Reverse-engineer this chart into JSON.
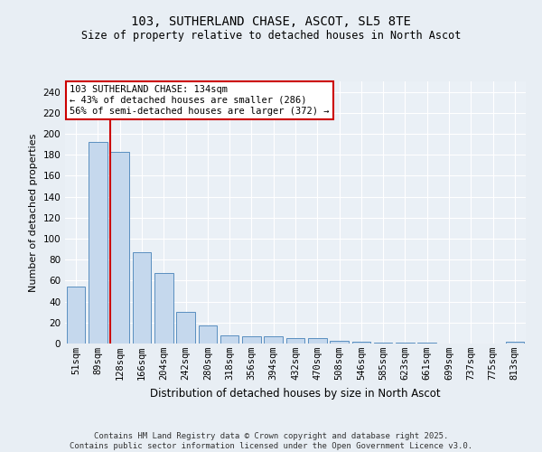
{
  "title_line1": "103, SUTHERLAND CHASE, ASCOT, SL5 8TE",
  "title_line2": "Size of property relative to detached houses in North Ascot",
  "xlabel": "Distribution of detached houses by size in North Ascot",
  "ylabel": "Number of detached properties",
  "categories": [
    "51sqm",
    "89sqm",
    "128sqm",
    "166sqm",
    "204sqm",
    "242sqm",
    "280sqm",
    "318sqm",
    "356sqm",
    "394sqm",
    "432sqm",
    "470sqm",
    "508sqm",
    "546sqm",
    "585sqm",
    "623sqm",
    "661sqm",
    "699sqm",
    "737sqm",
    "775sqm",
    "813sqm"
  ],
  "values": [
    54,
    192,
    183,
    87,
    67,
    30,
    17,
    8,
    7,
    7,
    5,
    5,
    3,
    2,
    1,
    1,
    1,
    0,
    0,
    0,
    2
  ],
  "bar_color": "#c5d8ed",
  "bar_edge_color": "#5a8fc0",
  "property_bin_index": 2,
  "red_line_color": "#cc0000",
  "annotation_text": "103 SUTHERLAND CHASE: 134sqm\n← 43% of detached houses are smaller (286)\n56% of semi-detached houses are larger (372) →",
  "annotation_box_color": "#ffffff",
  "annotation_box_edge": "#cc0000",
  "footer_line1": "Contains HM Land Registry data © Crown copyright and database right 2025.",
  "footer_line2": "Contains public sector information licensed under the Open Government Licence v3.0.",
  "bg_color": "#e8eef4",
  "plot_bg_color": "#eaf0f6",
  "grid_color": "#ffffff",
  "ylim": [
    0,
    250
  ],
  "yticks": [
    0,
    20,
    40,
    60,
    80,
    100,
    120,
    140,
    160,
    180,
    200,
    220,
    240
  ],
  "title_fontsize": 10,
  "subtitle_fontsize": 8.5,
  "xlabel_fontsize": 8.5,
  "ylabel_fontsize": 8,
  "tick_fontsize": 7.5,
  "annotation_fontsize": 7.5,
  "footer_fontsize": 6.5
}
